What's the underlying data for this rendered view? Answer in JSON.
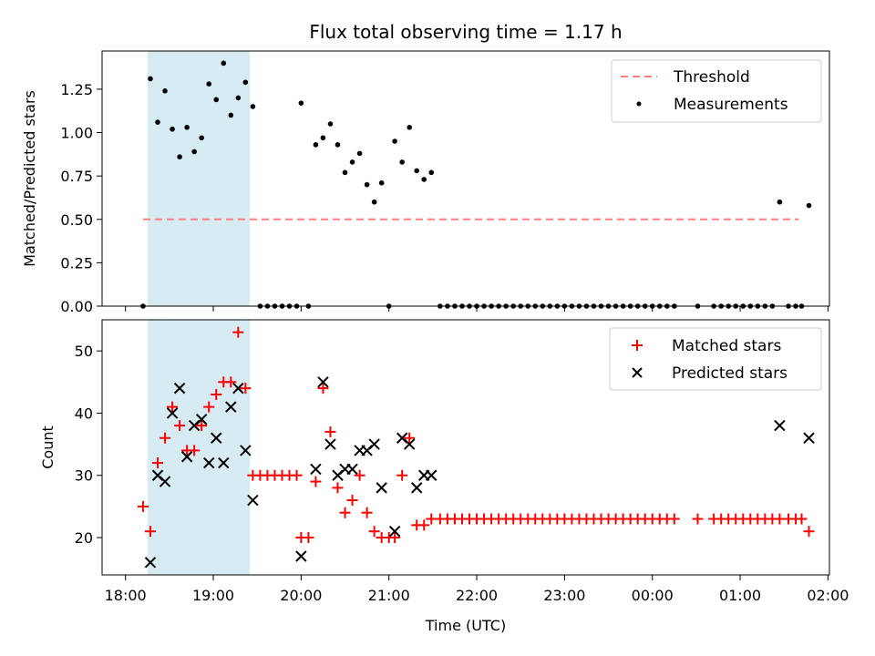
{
  "title": "Flux total observing time = 1.17 h",
  "colors": {
    "shade": "#add8e6",
    "threshold": "#ff7f7f",
    "matched": "#ff0000",
    "predicted": "#000000",
    "points": "#000000"
  },
  "chart_data": [
    {
      "type": "scatter",
      "ylabel": "Matched/Predicted stars",
      "xlabel": "",
      "ylim": [
        0,
        1.47
      ],
      "yticks": [
        "0.00",
        "0.25",
        "0.50",
        "0.75",
        "1.00",
        "1.25"
      ],
      "ytick_values": [
        0,
        0.25,
        0.5,
        0.75,
        1.0,
        1.25
      ],
      "legend_position": "upper right",
      "legend": [
        "Threshold",
        "Measurements"
      ],
      "shaded_span": [
        "18:15",
        "19:25"
      ],
      "threshold": {
        "name": "Threshold",
        "y": 0.5,
        "x_range": [
          "18:12",
          "01:40"
        ]
      },
      "series": [
        {
          "name": "Measurements",
          "points": [
            [
              "18:12",
              0.0
            ],
            [
              "18:17",
              1.31
            ],
            [
              "18:22",
              1.06
            ],
            [
              "18:27",
              1.24
            ],
            [
              "18:32",
              1.02
            ],
            [
              "18:37",
              0.86
            ],
            [
              "18:42",
              1.03
            ],
            [
              "18:47",
              0.89
            ],
            [
              "18:52",
              0.97
            ],
            [
              "18:57",
              1.28
            ],
            [
              "19:02",
              1.19
            ],
            [
              "19:07",
              1.4
            ],
            [
              "19:12",
              1.1
            ],
            [
              "19:17",
              1.2
            ],
            [
              "19:22",
              1.29
            ],
            [
              "19:27",
              1.15
            ],
            [
              "19:32",
              0.0
            ],
            [
              "19:37",
              0.0
            ],
            [
              "19:42",
              0.0
            ],
            [
              "19:47",
              0.0
            ],
            [
              "19:52",
              0.0
            ],
            [
              "19:57",
              0.0
            ],
            [
              "20:00",
              1.17
            ],
            [
              "20:05",
              0.0
            ],
            [
              "20:10",
              0.93
            ],
            [
              "20:15",
              0.97
            ],
            [
              "20:20",
              1.05
            ],
            [
              "20:25",
              0.93
            ],
            [
              "20:30",
              0.77
            ],
            [
              "20:35",
              0.83
            ],
            [
              "20:40",
              0.88
            ],
            [
              "20:45",
              0.7
            ],
            [
              "20:50",
              0.6
            ],
            [
              "20:55",
              0.71
            ],
            [
              "21:00",
              0.0
            ],
            [
              "21:04",
              0.95
            ],
            [
              "21:09",
              0.83
            ],
            [
              "21:14",
              1.03
            ],
            [
              "21:19",
              0.78
            ],
            [
              "21:24",
              0.73
            ],
            [
              "21:29",
              0.77
            ],
            [
              "21:35",
              0.0
            ],
            [
              "21:40",
              0.0
            ],
            [
              "21:45",
              0.0
            ],
            [
              "21:50",
              0.0
            ],
            [
              "21:55",
              0.0
            ],
            [
              "22:00",
              0.0
            ],
            [
              "22:05",
              0.0
            ],
            [
              "22:10",
              0.0
            ],
            [
              "22:15",
              0.0
            ],
            [
              "22:20",
              0.0
            ],
            [
              "22:25",
              0.0
            ],
            [
              "22:30",
              0.0
            ],
            [
              "22:35",
              0.0
            ],
            [
              "22:40",
              0.0
            ],
            [
              "22:45",
              0.0
            ],
            [
              "22:50",
              0.0
            ],
            [
              "22:55",
              0.0
            ],
            [
              "23:00",
              0.0
            ],
            [
              "23:05",
              0.0
            ],
            [
              "23:10",
              0.0
            ],
            [
              "23:15",
              0.0
            ],
            [
              "23:20",
              0.0
            ],
            [
              "23:25",
              0.0
            ],
            [
              "23:30",
              0.0
            ],
            [
              "23:35",
              0.0
            ],
            [
              "23:40",
              0.0
            ],
            [
              "23:45",
              0.0
            ],
            [
              "23:50",
              0.0
            ],
            [
              "23:55",
              0.0
            ],
            [
              "00:00",
              0.0
            ],
            [
              "00:05",
              0.0
            ],
            [
              "00:10",
              0.0
            ],
            [
              "00:15",
              0.0
            ],
            [
              "00:31",
              0.0
            ],
            [
              "00:42",
              0.0
            ],
            [
              "00:47",
              0.0
            ],
            [
              "00:52",
              0.0
            ],
            [
              "00:57",
              0.0
            ],
            [
              "01:02",
              0.0
            ],
            [
              "01:07",
              0.0
            ],
            [
              "01:12",
              0.0
            ],
            [
              "01:17",
              0.0
            ],
            [
              "01:22",
              0.0
            ],
            [
              "01:27",
              0.6
            ],
            [
              "01:33",
              0.0
            ],
            [
              "01:38",
              0.0
            ],
            [
              "01:42",
              0.0
            ],
            [
              "01:47",
              0.58
            ]
          ]
        }
      ]
    },
    {
      "type": "scatter",
      "ylabel": "Count",
      "xlabel": "Time (UTC)",
      "ylim": [
        14,
        55
      ],
      "yticks": [
        "20",
        "30",
        "40",
        "50"
      ],
      "ytick_values": [
        20,
        30,
        40,
        50
      ],
      "xticks": [
        "18:00",
        "19:00",
        "20:00",
        "21:00",
        "22:00",
        "23:00",
        "00:00",
        "01:00",
        "02:00"
      ],
      "legend_position": "upper right",
      "legend": [
        "Matched stars",
        "Predicted stars"
      ],
      "shaded_span": [
        "18:15",
        "19:25"
      ],
      "series": [
        {
          "name": "Matched stars",
          "points": [
            [
              "18:12",
              25
            ],
            [
              "18:17",
              21
            ],
            [
              "18:22",
              32
            ],
            [
              "18:27",
              36
            ],
            [
              "18:32",
              41
            ],
            [
              "18:37",
              38
            ],
            [
              "18:42",
              34
            ],
            [
              "18:47",
              34
            ],
            [
              "18:52",
              38
            ],
            [
              "18:57",
              41
            ],
            [
              "19:02",
              43
            ],
            [
              "19:07",
              45
            ],
            [
              "19:12",
              45
            ],
            [
              "19:17",
              53
            ],
            [
              "19:22",
              44
            ],
            [
              "19:27",
              30
            ],
            [
              "19:32",
              30
            ],
            [
              "19:37",
              30
            ],
            [
              "19:42",
              30
            ],
            [
              "19:47",
              30
            ],
            [
              "19:52",
              30
            ],
            [
              "19:57",
              30
            ],
            [
              "20:00",
              20
            ],
            [
              "20:05",
              20
            ],
            [
              "20:10",
              29
            ],
            [
              "20:15",
              44
            ],
            [
              "20:20",
              37
            ],
            [
              "20:25",
              28
            ],
            [
              "20:30",
              24
            ],
            [
              "20:35",
              26
            ],
            [
              "20:40",
              30
            ],
            [
              "20:45",
              24
            ],
            [
              "20:50",
              21
            ],
            [
              "20:55",
              20
            ],
            [
              "21:00",
              20
            ],
            [
              "21:04",
              20
            ],
            [
              "21:09",
              30
            ],
            [
              "21:14",
              36
            ],
            [
              "21:19",
              22
            ],
            [
              "21:24",
              22
            ],
            [
              "21:29",
              23
            ],
            [
              "21:35",
              23
            ],
            [
              "21:40",
              23
            ],
            [
              "21:45",
              23
            ],
            [
              "21:50",
              23
            ],
            [
              "21:55",
              23
            ],
            [
              "22:00",
              23
            ],
            [
              "22:05",
              23
            ],
            [
              "22:10",
              23
            ],
            [
              "22:15",
              23
            ],
            [
              "22:20",
              23
            ],
            [
              "22:25",
              23
            ],
            [
              "22:30",
              23
            ],
            [
              "22:35",
              23
            ],
            [
              "22:40",
              23
            ],
            [
              "22:45",
              23
            ],
            [
              "22:50",
              23
            ],
            [
              "22:55",
              23
            ],
            [
              "23:00",
              23
            ],
            [
              "23:05",
              23
            ],
            [
              "23:10",
              23
            ],
            [
              "23:15",
              23
            ],
            [
              "23:20",
              23
            ],
            [
              "23:25",
              23
            ],
            [
              "23:30",
              23
            ],
            [
              "23:35",
              23
            ],
            [
              "23:40",
              23
            ],
            [
              "23:45",
              23
            ],
            [
              "23:50",
              23
            ],
            [
              "23:55",
              23
            ],
            [
              "00:00",
              23
            ],
            [
              "00:05",
              23
            ],
            [
              "00:10",
              23
            ],
            [
              "00:15",
              23
            ],
            [
              "00:31",
              23
            ],
            [
              "00:42",
              23
            ],
            [
              "00:47",
              23
            ],
            [
              "00:52",
              23
            ],
            [
              "00:57",
              23
            ],
            [
              "01:02",
              23
            ],
            [
              "01:07",
              23
            ],
            [
              "01:12",
              23
            ],
            [
              "01:17",
              23
            ],
            [
              "01:22",
              23
            ],
            [
              "01:27",
              23
            ],
            [
              "01:33",
              23
            ],
            [
              "01:38",
              23
            ],
            [
              "01:42",
              23
            ],
            [
              "01:47",
              21
            ]
          ]
        },
        {
          "name": "Predicted stars",
          "points": [
            [
              "18:17",
              16
            ],
            [
              "18:22",
              30
            ],
            [
              "18:27",
              29
            ],
            [
              "18:32",
              40
            ],
            [
              "18:37",
              44
            ],
            [
              "18:42",
              33
            ],
            [
              "18:47",
              38
            ],
            [
              "18:52",
              39
            ],
            [
              "18:57",
              32
            ],
            [
              "19:02",
              36
            ],
            [
              "19:07",
              32
            ],
            [
              "19:12",
              41
            ],
            [
              "19:17",
              44
            ],
            [
              "19:22",
              34
            ],
            [
              "19:27",
              26
            ],
            [
              "20:00",
              17
            ],
            [
              "20:10",
              31
            ],
            [
              "20:15",
              45
            ],
            [
              "20:20",
              35
            ],
            [
              "20:25",
              30
            ],
            [
              "20:30",
              31
            ],
            [
              "20:35",
              31
            ],
            [
              "20:40",
              34
            ],
            [
              "20:45",
              34
            ],
            [
              "20:50",
              35
            ],
            [
              "20:55",
              28
            ],
            [
              "21:04",
              21
            ],
            [
              "21:09",
              36
            ],
            [
              "21:14",
              35
            ],
            [
              "21:19",
              28
            ],
            [
              "21:24",
              30
            ],
            [
              "21:29",
              30
            ],
            [
              "01:27",
              38
            ],
            [
              "01:47",
              36
            ]
          ]
        }
      ]
    }
  ]
}
